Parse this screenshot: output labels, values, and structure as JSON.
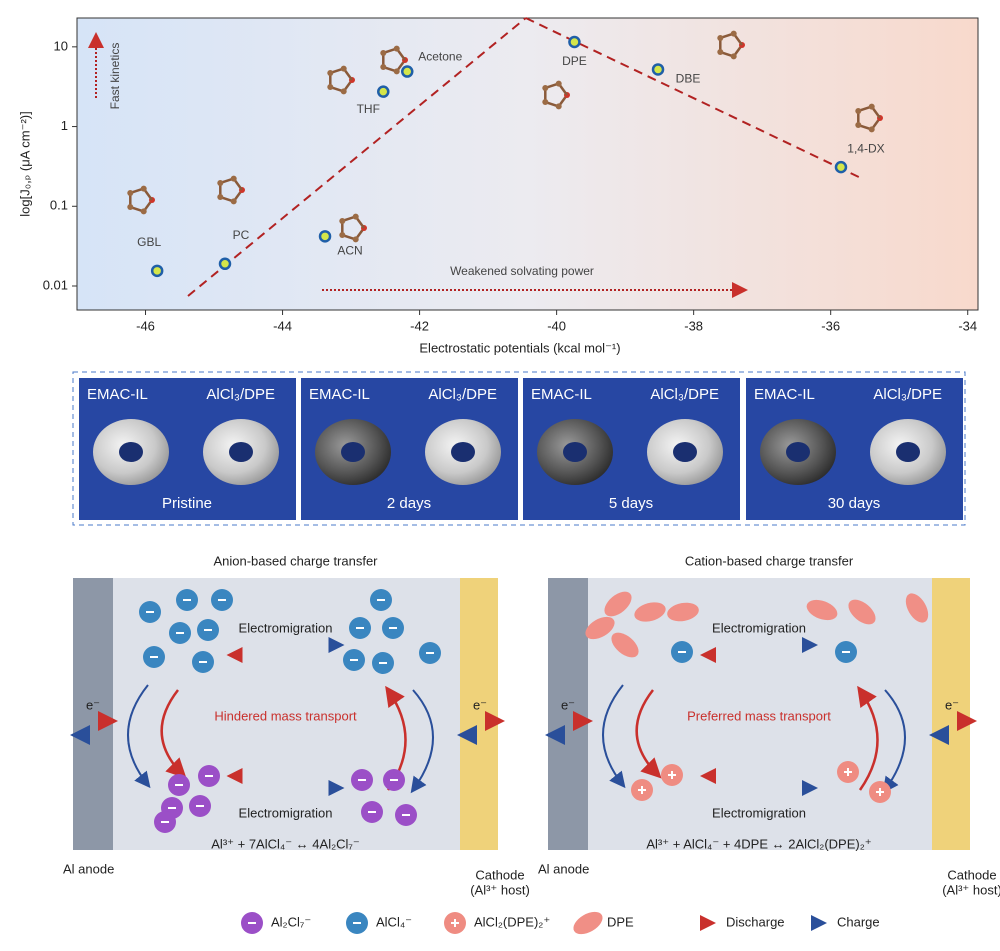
{
  "chart_data": {
    "type": "scatter",
    "x": [
      -45.83,
      -44.84,
      -43.38,
      -42.53,
      -42.18,
      -39.74,
      -38.52,
      -35.85
    ],
    "values": [
      0.0155,
      0.019,
      0.042,
      2.74,
      4.9,
      11.5,
      5.2,
      0.31
    ],
    "labels": [
      "GBL",
      "PC",
      "ACN",
      "THF",
      "Acetone",
      "DPE",
      "DBE",
      "1,4-DX"
    ],
    "color": "#1f5fa8",
    "marker_fill": "#d4e64a",
    "xlim": [
      -47,
      -33.85
    ],
    "ylim": [
      0.005,
      23
    ],
    "log_y": true,
    "xticks": [
      -46,
      -44,
      -42,
      -40,
      -38,
      -36,
      -34
    ],
    "yticks": [
      0.01,
      0.1,
      1,
      10
    ],
    "xlabel": "Electrostatic potentials (kcal mol⁻¹)",
    "ylabel": "log[J₀,ₚ (μA cm⁻²)]",
    "trend_lines": {
      "color": "#b22222",
      "lines": [
        {
          "x": [
            -45.38,
            -40.45
          ],
          "y": [
            0.0075,
            23
          ]
        },
        {
          "x": [
            -40.45,
            -35.53
          ],
          "y": [
            23,
            0.22
          ]
        }
      ]
    },
    "annotations": [
      "Fast kinetics",
      "Weakened solvating power"
    ]
  },
  "photos": {
    "panels": [
      {
        "left": "EMAC-IL",
        "right": "AlCl₃/DPE",
        "caption": "Pristine"
      },
      {
        "left": "EMAC-IL",
        "right": "AlCl₃/DPE",
        "caption": "2 days"
      },
      {
        "left": "EMAC-IL",
        "right": "AlCl₃/DPE",
        "caption": "5 days"
      },
      {
        "left": "EMAC-IL",
        "right": "AlCl₃/DPE",
        "caption": "30 days"
      }
    ]
  },
  "diagrams": {
    "panels": [
      {
        "title": "Anion-based charge transfer",
        "top_label": "Electromigration",
        "bottom_label": "Electromigration",
        "center": "Hindered mass transport",
        "equation": "Al³⁺ + 7AlCl₄⁻ ↔ 4Al₂Cl₇⁻",
        "anode": "Al anode",
        "cathode": [
          "Cathode",
          "(Al³⁺ host)"
        ],
        "electron": "e⁻"
      },
      {
        "title": "Cation-based charge transfer",
        "top_label": "Electromigration",
        "bottom_label": "Electromigration",
        "center": "Preferred mass transport",
        "equation": "Al³⁺ + AlCl₄⁻ + 4DPE ↔ 2AlCl₂(DPE)₂⁺",
        "anode": "Al anode",
        "cathode": [
          "Cathode",
          "(Al³⁺ host)"
        ],
        "electron": "e⁻"
      }
    ],
    "legend": [
      "Al₂Cl₇⁻",
      "AlCl₄⁻",
      "AlCl₂(DPE)₂⁺",
      "DPE",
      "Discharge",
      "Charge"
    ]
  }
}
